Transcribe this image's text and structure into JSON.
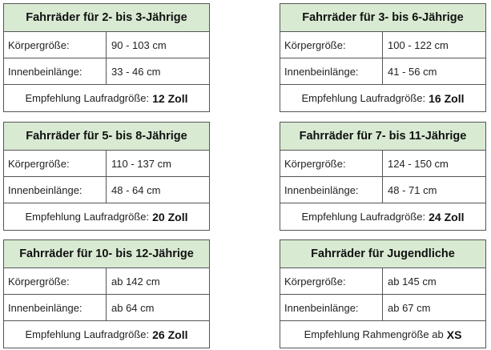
{
  "cards": [
    {
      "title": "Fahrräder für 2- bis 3-Jährige",
      "row1_label": "Körpergröße:",
      "row1_value": "90 - 103 cm",
      "row2_label": "Innenbeinlänge:",
      "row2_value": "33 - 46 cm",
      "rec_label": "Empfehlung Laufradgröße:",
      "rec_value": "12 Zoll"
    },
    {
      "title": "Fahrräder für 3- bis 6-Jährige",
      "row1_label": "Körpergröße:",
      "row1_value": "100 - 122 cm",
      "row2_label": "Innenbeinlänge:",
      "row2_value": "41 - 56 cm",
      "rec_label": "Empfehlung Laufradgröße:",
      "rec_value": "16 Zoll"
    },
    {
      "title": "Fahrräder für 5- bis 8-Jährige",
      "row1_label": "Körpergröße:",
      "row1_value": "110 - 137 cm",
      "row2_label": "Innenbeinlänge:",
      "row2_value": "48 - 64 cm",
      "rec_label": "Empfehlung Laufradgröße:",
      "rec_value": "20 Zoll"
    },
    {
      "title": "Fahrräder für 7- bis 11-Jährige",
      "row1_label": "Körpergröße:",
      "row1_value": "124 - 150 cm",
      "row2_label": "Innenbeinlänge:",
      "row2_value": "48 - 71 cm",
      "rec_label": "Empfehlung Laufradgröße:",
      "rec_value": "24 Zoll"
    },
    {
      "title": "Fahrräder für 10- bis 12-Jährige",
      "row1_label": "Körpergröße:",
      "row1_value": "ab 142 cm",
      "row2_label": "Innenbeinlänge:",
      "row2_value": "ab 64 cm",
      "rec_label": "Empfehlung Laufradgröße:",
      "rec_value": "26 Zoll"
    },
    {
      "title": "Fahrräder für Jugendliche",
      "row1_label": "Körpergröße:",
      "row1_value": "ab 145 cm",
      "row2_label": "Innenbeinlänge:",
      "row2_value": "ab 67 cm",
      "rec_label": "Empfehlung Rahmengröße ab",
      "rec_value": "XS"
    }
  ],
  "colors": {
    "header_bg": "#d9ead3",
    "border": "#555555"
  }
}
